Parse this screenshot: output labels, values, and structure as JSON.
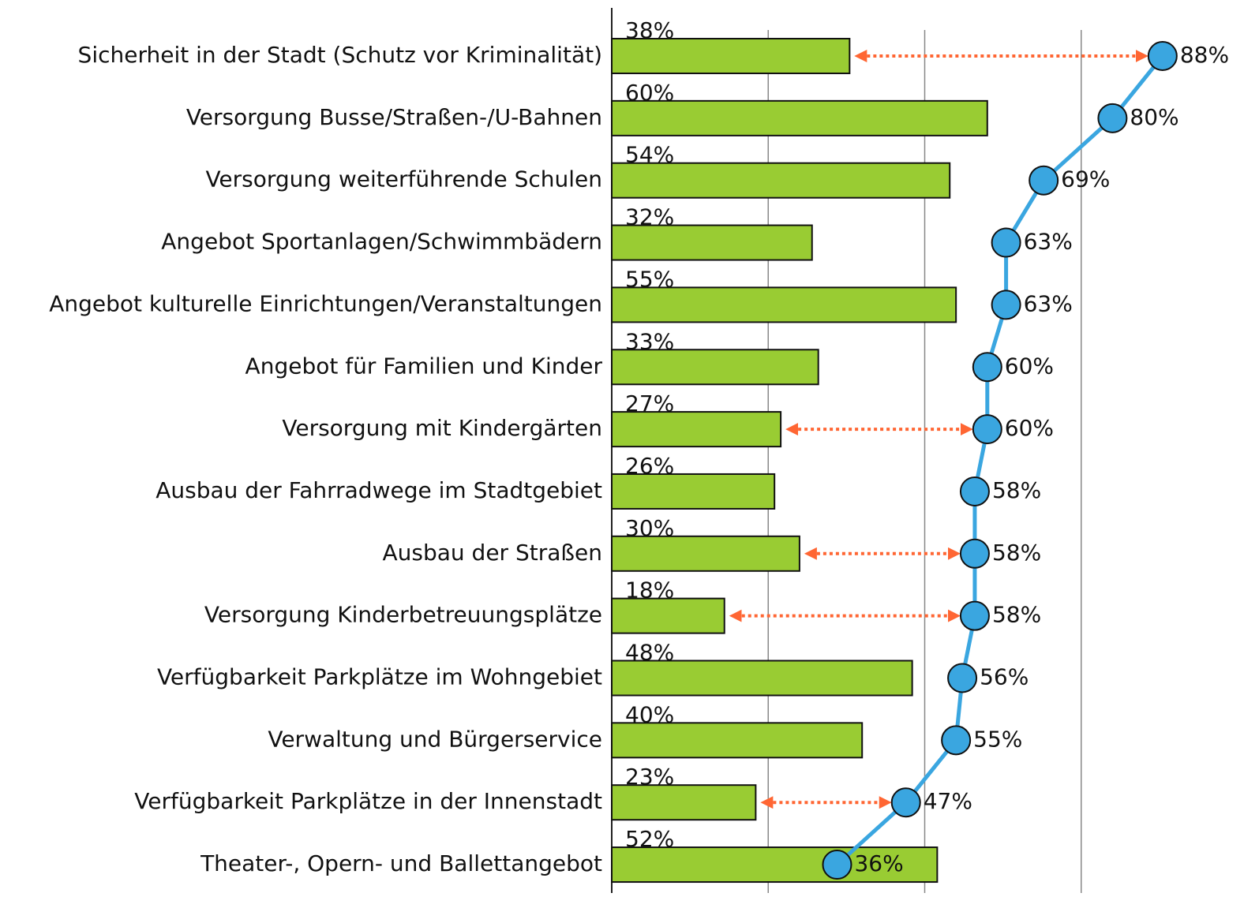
{
  "chart_data": {
    "type": "bar",
    "orientation": "horizontal",
    "categories": [
      "Sicherheit in der Stadt (Schutz vor Kriminalität)",
      "Versorgung Busse/Straßen-/U-Bahnen",
      "Versorgung weiterführende Schulen",
      "Angebot Sportanlagen/Schwimmbädern",
      "Angebot kulturelle Einrichtungen/Veranstaltungen",
      "Angebot für Familien und Kinder",
      "Versorgung mit Kindergärten",
      "Ausbau der Fahrradwege im Stadtgebiet",
      "Ausbau der Straßen",
      "Versorgung Kinderbetreuungsplätze",
      "Verfügbarkeit Parkplätze im Wohngebiet",
      "Verwaltung und Bürgerservice",
      "Verfügbarkeit Parkplätze in der Innenstadt",
      "Theater-, Opern- und Ballettangebot"
    ],
    "series": [
      {
        "type": "bar",
        "color": "#99cc33",
        "values": [
          38,
          60,
          54,
          32,
          55,
          33,
          27,
          26,
          30,
          18,
          48,
          40,
          23,
          52
        ],
        "value_labels": [
          "38%",
          "60%",
          "54%",
          "32%",
          "55%",
          "33%",
          "27%",
          "26%",
          "30%",
          "18%",
          "48%",
          "40%",
          "23%",
          "52%"
        ]
      },
      {
        "type": "line",
        "color": "#3aa6e0",
        "values": [
          88,
          80,
          69,
          63,
          63,
          60,
          60,
          58,
          58,
          58,
          56,
          55,
          47,
          36
        ],
        "value_labels": [
          "88%",
          "80%",
          "69%",
          "63%",
          "63%",
          "60%",
          "60%",
          "58%",
          "58%",
          "58%",
          "56%",
          "55%",
          "47%",
          "36%"
        ]
      }
    ],
    "arrows": [
      0,
      6,
      8,
      9,
      12
    ],
    "arrow_color": "#ff6633",
    "xlim": [
      0,
      100
    ],
    "xticks": [
      0,
      25,
      50,
      75,
      100
    ],
    "grid": true
  }
}
